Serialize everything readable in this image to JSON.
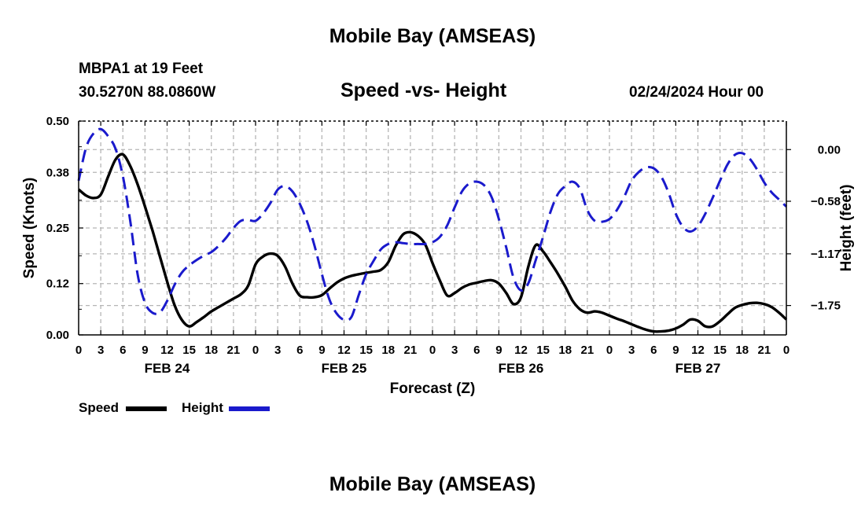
{
  "header": {
    "title": "Mobile Bay (AMSEAS)",
    "station_line": "MBPA1 at 19 Feet",
    "coords": "30.5270N  88.0860W",
    "subtitle": "Speed -vs- Height",
    "datetime": "02/24/2024 Hour 00",
    "footer_title": "Mobile Bay (AMSEAS)"
  },
  "legend": {
    "speed_label": "Speed",
    "height_label": "Height"
  },
  "colors": {
    "speed": "#000000",
    "height": "#1a1acc",
    "grid": "#b5b5b5"
  },
  "chart_data": {
    "type": "line",
    "title": "Speed -vs- Height",
    "xlabel": "Forecast (Z)",
    "ylabel": "Speed (Knots)",
    "y2label": "Height (feet)",
    "xlim": [
      0,
      96
    ],
    "ylim": [
      0,
      0.5
    ],
    "y2lim": [
      -2.08,
      0.32
    ],
    "x_ticks": [
      0,
      3,
      6,
      9,
      12,
      15,
      18,
      21,
      24,
      27,
      30,
      33,
      36,
      39,
      42,
      45,
      48,
      51,
      54,
      57,
      60,
      63,
      66,
      69,
      72,
      75,
      78,
      81,
      84,
      87,
      90,
      93,
      96
    ],
    "x_tick_labels": [
      "0",
      "3",
      "6",
      "9",
      "12",
      "15",
      "18",
      "21",
      "0",
      "3",
      "6",
      "9",
      "12",
      "15",
      "18",
      "21",
      "0",
      "3",
      "6",
      "9",
      "12",
      "15",
      "18",
      "21",
      "0",
      "3",
      "6",
      "9",
      "12",
      "15",
      "18",
      "21",
      "0"
    ],
    "day_labels": [
      {
        "x": 12,
        "label": "FEB 24"
      },
      {
        "x": 36,
        "label": "FEB 25"
      },
      {
        "x": 60,
        "label": "FEB 26"
      },
      {
        "x": 84,
        "label": "FEB 27"
      }
    ],
    "y_ticks": [
      0.0,
      0.12,
      0.25,
      0.38,
      0.5
    ],
    "y_tick_labels": [
      "0.00",
      "0.12",
      "0.25",
      "0.38",
      "0.50"
    ],
    "y2_ticks": [
      0.0,
      -0.58,
      -1.17,
      -1.75
    ],
    "y2_tick_labels": [
      "0.00",
      "−0.58",
      "−1.17",
      "−1.75"
    ],
    "grid": true,
    "series": [
      {
        "name": "Speed",
        "axis": "left",
        "style": "solid",
        "x": [
          0,
          1,
          2,
          3,
          4,
          5,
          6,
          7,
          8,
          9,
          10,
          11,
          12,
          13,
          14,
          15,
          16,
          17,
          18,
          19,
          20,
          21,
          22,
          23,
          24,
          25,
          26,
          27,
          28,
          29,
          30,
          31,
          32,
          33,
          34,
          35,
          36,
          37,
          38,
          39,
          40,
          41,
          42,
          43,
          44,
          45,
          46,
          47,
          48,
          49,
          50,
          51,
          52,
          53,
          54,
          55,
          56,
          57,
          58,
          59,
          60,
          61,
          62,
          63,
          64,
          65,
          66,
          67,
          68,
          69,
          70,
          71,
          72,
          73,
          74,
          75,
          76,
          77,
          78,
          79,
          80,
          81,
          82,
          83,
          84,
          85,
          86,
          87,
          88,
          89,
          90,
          91,
          92,
          93,
          94,
          95,
          96
        ],
        "values": [
          0.34,
          0.326,
          0.32,
          0.328,
          0.37,
          0.41,
          0.422,
          0.395,
          0.352,
          0.3,
          0.245,
          0.185,
          0.125,
          0.07,
          0.035,
          0.02,
          0.03,
          0.042,
          0.055,
          0.065,
          0.075,
          0.085,
          0.095,
          0.115,
          0.165,
          0.183,
          0.19,
          0.185,
          0.16,
          0.12,
          0.092,
          0.088,
          0.088,
          0.093,
          0.108,
          0.122,
          0.132,
          0.138,
          0.142,
          0.145,
          0.148,
          0.152,
          0.17,
          0.208,
          0.235,
          0.24,
          0.232,
          0.212,
          0.168,
          0.127,
          0.092,
          0.098,
          0.11,
          0.118,
          0.122,
          0.126,
          0.128,
          0.12,
          0.098,
          0.072,
          0.088,
          0.16,
          0.21,
          0.195,
          0.17,
          0.143,
          0.113,
          0.08,
          0.06,
          0.052,
          0.055,
          0.052,
          0.045,
          0.038,
          0.032,
          0.025,
          0.018,
          0.012,
          0.008,
          0.008,
          0.01,
          0.015,
          0.024,
          0.036,
          0.033,
          0.02,
          0.02,
          0.032,
          0.048,
          0.063,
          0.07,
          0.074,
          0.075,
          0.072,
          0.065,
          0.052,
          0.036
        ]
      },
      {
        "name": "Height",
        "axis": "right",
        "style": "dashed",
        "x": [
          0,
          1,
          2,
          3,
          4,
          5,
          6,
          7,
          8,
          9,
          10,
          11,
          12,
          13,
          14,
          15,
          16,
          17,
          18,
          19,
          20,
          21,
          22,
          23,
          24,
          25,
          26,
          27,
          28,
          29,
          30,
          31,
          32,
          33,
          34,
          35,
          36,
          37,
          38,
          39,
          40,
          41,
          42,
          43,
          44,
          45,
          46,
          47,
          48,
          49,
          50,
          51,
          52,
          53,
          54,
          55,
          56,
          57,
          58,
          59,
          60,
          61,
          62,
          63,
          64,
          65,
          66,
          67,
          68,
          69,
          70,
          71,
          72,
          73,
          74,
          75,
          76,
          77,
          78,
          79,
          80,
          81,
          82,
          83,
          84,
          85,
          86,
          87,
          88,
          89,
          90,
          91,
          92,
          93,
          94,
          95,
          96
        ],
        "values": [
          -0.35,
          0.02,
          0.18,
          0.23,
          0.15,
          0.01,
          -0.3,
          -0.8,
          -1.4,
          -1.72,
          -1.83,
          -1.83,
          -1.7,
          -1.52,
          -1.38,
          -1.3,
          -1.24,
          -1.19,
          -1.15,
          -1.08,
          -0.99,
          -0.88,
          -0.8,
          -0.79,
          -0.8,
          -0.72,
          -0.6,
          -0.45,
          -0.41,
          -0.47,
          -0.61,
          -0.81,
          -1.08,
          -1.4,
          -1.68,
          -1.84,
          -1.91,
          -1.88,
          -1.63,
          -1.4,
          -1.25,
          -1.12,
          -1.06,
          -1.04,
          -1.05,
          -1.06,
          -1.06,
          -1.06,
          -1.04,
          -0.98,
          -0.85,
          -0.65,
          -0.47,
          -0.38,
          -0.36,
          -0.4,
          -0.53,
          -0.78,
          -1.1,
          -1.44,
          -1.58,
          -1.5,
          -1.24,
          -0.98,
          -0.7,
          -0.5,
          -0.41,
          -0.36,
          -0.44,
          -0.68,
          -0.8,
          -0.81,
          -0.78,
          -0.68,
          -0.53,
          -0.35,
          -0.25,
          -0.2,
          -0.21,
          -0.3,
          -0.48,
          -0.72,
          -0.87,
          -0.92,
          -0.86,
          -0.72,
          -0.54,
          -0.35,
          -0.17,
          -0.06,
          -0.04,
          -0.1,
          -0.22,
          -0.37,
          -0.48,
          -0.56,
          -0.64
        ]
      }
    ]
  }
}
